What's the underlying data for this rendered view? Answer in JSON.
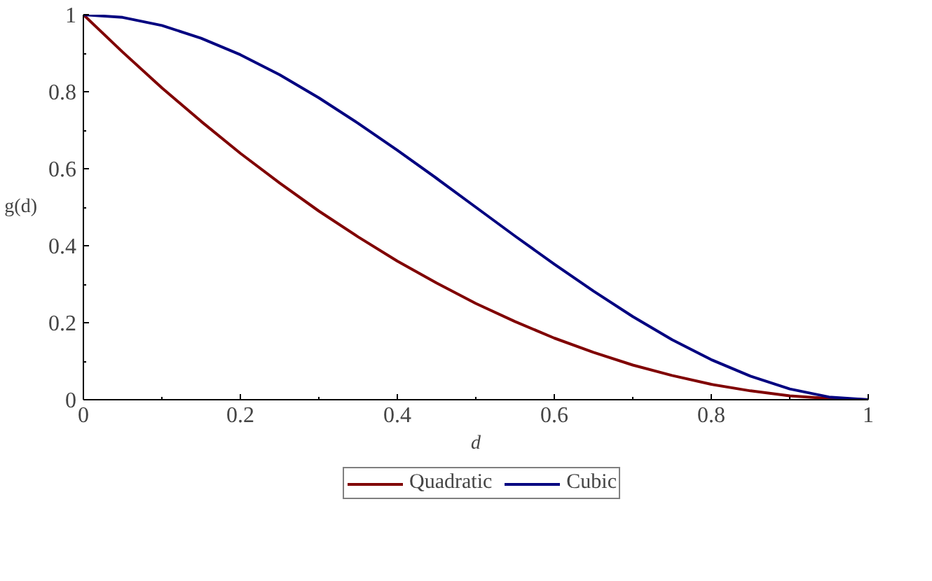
{
  "chart_data": {
    "type": "line",
    "xlabel": "d",
    "ylabel": "g(d)",
    "x": [
      0,
      0.05,
      0.1,
      0.15,
      0.2,
      0.25,
      0.3,
      0.35,
      0.4,
      0.45,
      0.5,
      0.55,
      0.6,
      0.65,
      0.7,
      0.75,
      0.8,
      0.85,
      0.9,
      0.95,
      1
    ],
    "series": [
      {
        "name": "Quadratic",
        "color": "#800000",
        "values": [
          1,
          0.903,
          0.81,
          0.723,
          0.64,
          0.563,
          0.49,
          0.423,
          0.36,
          0.303,
          0.25,
          0.203,
          0.16,
          0.123,
          0.09,
          0.063,
          0.04,
          0.023,
          0.01,
          0.003,
          0
        ]
      },
      {
        "name": "Cubic",
        "color": "#000080",
        "values": [
          1,
          0.993,
          0.972,
          0.939,
          0.896,
          0.844,
          0.784,
          0.718,
          0.648,
          0.575,
          0.5,
          0.425,
          0.352,
          0.282,
          0.216,
          0.156,
          0.104,
          0.061,
          0.028,
          0.007,
          0
        ]
      }
    ],
    "xlim": [
      0,
      1
    ],
    "ylim": [
      0,
      1
    ],
    "xticks": [
      0,
      0.2,
      0.4,
      0.6,
      0.8,
      1
    ],
    "yticks": [
      0,
      0.2,
      0.4,
      0.6,
      0.8,
      1
    ],
    "grid": false,
    "legend": "bottom",
    "line_style": "solid",
    "marker": "none"
  }
}
